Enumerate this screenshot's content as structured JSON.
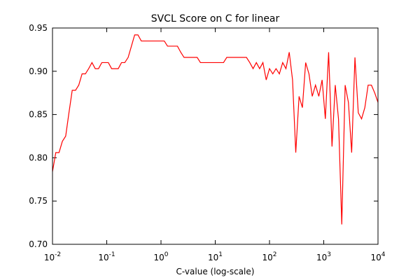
{
  "chart_data": {
    "type": "line",
    "title": "SVCL Score on C for linear",
    "xlabel": "C-value (log-scale)",
    "xscale": "log",
    "color": "#ff0000",
    "xlim": [
      0.01,
      10000
    ],
    "xticks": [
      {
        "value": 0.01,
        "label": "10",
        "exponent": "-2"
      },
      {
        "value": 0.1,
        "label": "10",
        "exponent": "-1"
      },
      {
        "value": 1,
        "label": "10",
        "exponent": "0"
      },
      {
        "value": 10,
        "label": "10",
        "exponent": "1"
      },
      {
        "value": 100,
        "label": "10",
        "exponent": "2"
      },
      {
        "value": 1000,
        "label": "10",
        "exponent": "3"
      },
      {
        "value": 10000,
        "label": "10",
        "exponent": "4"
      }
    ],
    "ylim": [
      0.7,
      0.95
    ],
    "yticks": [
      {
        "value": 0.7,
        "label": "0.70"
      },
      0.75,
      {
        "value": 0.8,
        "label": "0.80"
      },
      0.85,
      {
        "value": 0.9,
        "label": "0.90"
      },
      0.95
    ],
    "x": [
      0.01,
      0.0115,
      0.0132,
      0.0152,
      0.0175,
      0.0201,
      0.0231,
      0.0266,
      0.0305,
      0.0351,
      0.0404,
      0.0464,
      0.0534,
      0.0614,
      0.0705,
      0.0811,
      0.0933,
      0.107,
      0.123,
      0.142,
      0.163,
      0.187,
      0.215,
      0.248,
      0.285,
      0.327,
      0.376,
      0.433,
      0.498,
      0.572,
      0.658,
      0.756,
      0.87,
      1,
      1.15,
      1.32,
      1.52,
      1.75,
      2.01,
      2.31,
      2.66,
      3.05,
      3.51,
      4.04,
      4.64,
      5.34,
      6.14,
      7.05,
      8.11,
      9.33,
      10.7,
      12.3,
      14.2,
      16.3,
      18.7,
      21.5,
      24.8,
      28.5,
      32.7,
      37.6,
      43.3,
      49.8,
      57.2,
      65.8,
      75.6,
      87.0,
      100,
      115,
      132,
      152,
      175,
      201,
      231,
      266,
      305,
      351,
      404,
      464,
      534,
      614,
      705,
      811,
      933,
      1070,
      1230,
      1420,
      1630,
      1870,
      2150,
      2480,
      2850,
      3270,
      3760,
      4330,
      4980,
      5720,
      6580,
      7560,
      8700,
      10000
    ],
    "values": [
      0.784,
      0.806,
      0.806,
      0.819,
      0.825,
      0.852,
      0.878,
      0.878,
      0.884,
      0.897,
      0.897,
      0.903,
      0.91,
      0.903,
      0.903,
      0.91,
      0.91,
      0.91,
      0.903,
      0.903,
      0.903,
      0.91,
      0.91,
      0.916,
      0.929,
      0.942,
      0.942,
      0.935,
      0.935,
      0.935,
      0.935,
      0.935,
      0.935,
      0.935,
      0.935,
      0.929,
      0.929,
      0.929,
      0.929,
      0.922,
      0.916,
      0.916,
      0.916,
      0.916,
      0.916,
      0.91,
      0.91,
      0.91,
      0.91,
      0.91,
      0.91,
      0.91,
      0.91,
      0.916,
      0.916,
      0.916,
      0.916,
      0.916,
      0.916,
      0.916,
      0.91,
      0.903,
      0.91,
      0.903,
      0.91,
      0.89,
      0.903,
      0.897,
      0.903,
      0.897,
      0.91,
      0.903,
      0.922,
      0.89,
      0.806,
      0.871,
      0.858,
      0.91,
      0.897,
      0.871,
      0.884,
      0.871,
      0.89,
      0.845,
      0.922,
      0.813,
      0.884,
      0.845,
      0.723,
      0.884,
      0.864,
      0.806,
      0.916,
      0.852,
      0.845,
      0.858,
      0.884,
      0.884,
      0.875,
      0.864
    ]
  }
}
